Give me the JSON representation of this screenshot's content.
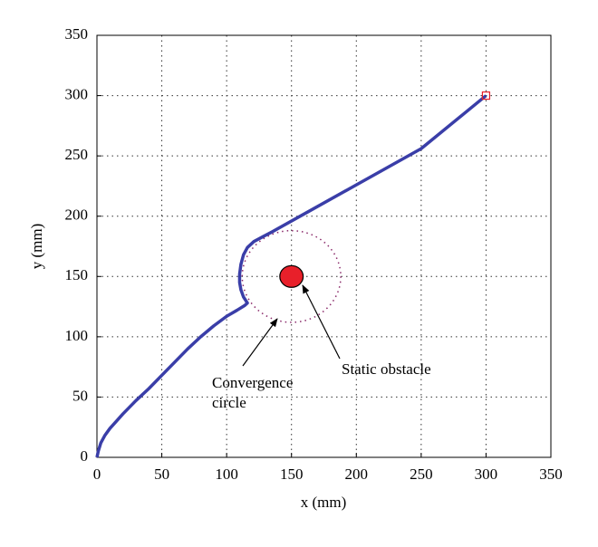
{
  "chart_data": {
    "type": "line",
    "x_label": "x (mm)",
    "y_label": "y (mm)",
    "xlim": [
      0,
      350
    ],
    "ylim": [
      0,
      350
    ],
    "xticks": [
      0,
      50,
      100,
      150,
      200,
      250,
      300,
      350
    ],
    "yticks": [
      0,
      50,
      100,
      150,
      200,
      250,
      300,
      350
    ],
    "grid": true,
    "series": [
      {
        "color": "#3a3ea8",
        "x": [
          0,
          1,
          3,
          6,
          10,
          20,
          30,
          40,
          50,
          60,
          70,
          80,
          90,
          100,
          108,
          114,
          116,
          113,
          111,
          110,
          110,
          111,
          113,
          116,
          121,
          128,
          135,
          160,
          200,
          250,
          300
        ],
        "values": [
          0,
          5,
          12,
          18,
          24,
          36,
          47,
          57,
          68,
          79,
          90,
          100,
          109,
          117,
          122,
          126,
          128,
          133,
          139,
          145,
          152,
          160,
          168,
          174,
          179,
          183,
          187,
          202,
          226,
          256,
          300
        ]
      }
    ],
    "goal": {
      "x": 300,
      "y": 300,
      "color": "#e8202a"
    },
    "obstacle": {
      "x": 150,
      "y": 150,
      "radius": 9,
      "color": "#e8202a"
    },
    "convergence_circle": {
      "x": 150,
      "y": 150,
      "radius": 38,
      "color": "#8a2a6a"
    },
    "annotations": [
      {
        "text": [
          "Convergence",
          "circle"
        ]
      },
      {
        "text": "Static obstacle"
      }
    ]
  }
}
